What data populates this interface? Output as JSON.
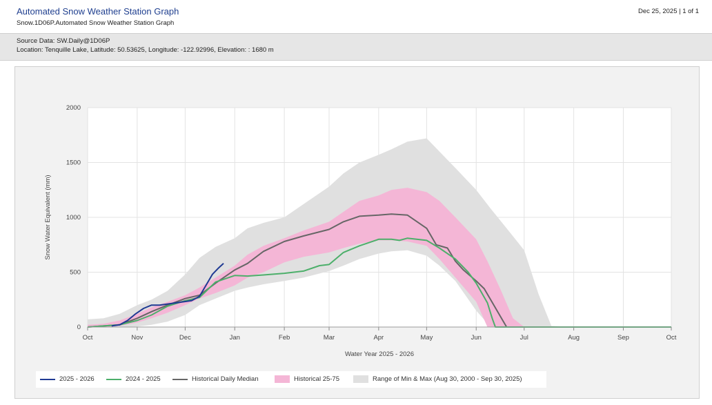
{
  "header": {
    "title": "Automated Snow Weather Station Graph",
    "subtitle": "Snow.1D06P.Automated Snow Weather Station Graph",
    "date_page": "Dec 25, 2025 | 1 of 1"
  },
  "meta": {
    "source": "Source Data: SW.Daily@1D06P",
    "location": "Location: Tenquille Lake, Latitude: 50.53625, Longitude: -122.92996, Elevation: : 1680 m"
  },
  "legend": {
    "current": "2025 - 2026",
    "previous": "2024 - 2025",
    "median": "Historical Daily Median",
    "p2575": "Historical 25-75",
    "range": "Range of Min & Max (Aug 30, 2000 - Sep 30, 2025)"
  },
  "colors": {
    "current": "#1f3a93",
    "previous": "#4caf6a",
    "median": "#666666",
    "p2575": "#f4b6d6",
    "range": "#e0e0e0"
  },
  "chart_data": {
    "type": "line",
    "title": "",
    "xlabel": "Water Year 2025 - 2026",
    "ylabel": "Snow Water Equivalent (mm)",
    "ylim": [
      0,
      2000
    ],
    "xlim": [
      0,
      365
    ],
    "yticks": [
      0,
      500,
      1000,
      1500,
      2000
    ],
    "xticks": [
      {
        "label": "Oct",
        "day": 0
      },
      {
        "label": "Nov",
        "day": 31
      },
      {
        "label": "Dec",
        "day": 61
      },
      {
        "label": "Jan",
        "day": 92
      },
      {
        "label": "Feb",
        "day": 123
      },
      {
        "label": "Mar",
        "day": 151
      },
      {
        "label": "Apr",
        "day": 182
      },
      {
        "label": "May",
        "day": 212
      },
      {
        "label": "Jun",
        "day": 243
      },
      {
        "label": "Jul",
        "day": 273
      },
      {
        "label": "Aug",
        "day": 304
      },
      {
        "label": "Sep",
        "day": 335
      },
      {
        "label": "Oct",
        "day": 365
      }
    ],
    "x_unit": "day of water year (Oct 1 = 0)",
    "series": [
      {
        "name": "Range of Min & Max (Aug 30, 2000 - Sep 30, 2025)",
        "kind": "band",
        "x": [
          0,
          10,
          20,
          31,
          40,
          50,
          61,
          70,
          80,
          92,
          100,
          110,
          123,
          135,
          151,
          160,
          170,
          182,
          190,
          200,
          212,
          220,
          230,
          243,
          252,
          262,
          273,
          282,
          290,
          304,
          365
        ],
        "lower": [
          0,
          0,
          0,
          5,
          20,
          50,
          110,
          200,
          260,
          330,
          360,
          390,
          420,
          450,
          510,
          560,
          620,
          670,
          690,
          700,
          650,
          560,
          420,
          150,
          0,
          0,
          0,
          0,
          0,
          0,
          0
        ],
        "upper": [
          70,
          80,
          120,
          200,
          250,
          330,
          480,
          630,
          730,
          810,
          900,
          950,
          1000,
          1120,
          1280,
          1400,
          1500,
          1570,
          1620,
          1690,
          1720,
          1600,
          1450,
          1250,
          1080,
          900,
          700,
          300,
          10,
          0,
          0
        ]
      },
      {
        "name": "Historical 25-75",
        "kind": "band",
        "x": [
          0,
          10,
          20,
          31,
          40,
          50,
          61,
          70,
          80,
          92,
          100,
          110,
          123,
          135,
          151,
          160,
          170,
          182,
          190,
          200,
          212,
          220,
          230,
          243,
          250,
          258,
          266,
          273,
          280
        ],
        "lower": [
          0,
          0,
          10,
          40,
          80,
          130,
          200,
          260,
          310,
          380,
          450,
          500,
          590,
          640,
          680,
          720,
          760,
          790,
          790,
          780,
          740,
          620,
          450,
          230,
          0,
          0,
          0,
          0,
          0
        ],
        "upper": [
          20,
          30,
          60,
          120,
          180,
          230,
          290,
          360,
          450,
          560,
          660,
          740,
          810,
          880,
          960,
          1050,
          1150,
          1200,
          1250,
          1270,
          1230,
          1150,
          1000,
          800,
          600,
          350,
          80,
          0,
          0
        ]
      },
      {
        "name": "Historical Daily Median",
        "kind": "line",
        "x": [
          0,
          20,
          31,
          40,
          50,
          61,
          70,
          80,
          92,
          100,
          110,
          123,
          135,
          151,
          160,
          170,
          182,
          190,
          200,
          212,
          218,
          225,
          230,
          235,
          243,
          248,
          252,
          258,
          262,
          365
        ],
        "y": [
          0,
          20,
          80,
          140,
          200,
          260,
          290,
          400,
          520,
          580,
          690,
          780,
          830,
          890,
          960,
          1010,
          1020,
          1030,
          1020,
          900,
          750,
          720,
          600,
          520,
          420,
          350,
          250,
          100,
          0,
          0
        ]
      },
      {
        "name": "2024 - 2025",
        "kind": "line",
        "x": [
          0,
          20,
          31,
          40,
          50,
          61,
          70,
          80,
          92,
          100,
          110,
          123,
          135,
          145,
          151,
          160,
          170,
          180,
          182,
          190,
          195,
          200,
          212,
          220,
          230,
          238,
          243,
          250,
          253,
          255,
          365
        ],
        "y": [
          0,
          20,
          60,
          110,
          190,
          240,
          270,
          410,
          470,
          465,
          475,
          490,
          510,
          560,
          570,
          680,
          740,
          790,
          800,
          800,
          790,
          810,
          790,
          720,
          620,
          500,
          400,
          220,
          80,
          0,
          0
        ]
      },
      {
        "name": "2025 - 2026",
        "kind": "line",
        "x": [
          15,
          20,
          25,
          30,
          35,
          40,
          45,
          50,
          55,
          60,
          65,
          70,
          74,
          78,
          82,
          85
        ],
        "y": [
          10,
          20,
          60,
          120,
          170,
          200,
          200,
          210,
          220,
          230,
          240,
          280,
          380,
          480,
          540,
          580
        ]
      }
    ]
  }
}
